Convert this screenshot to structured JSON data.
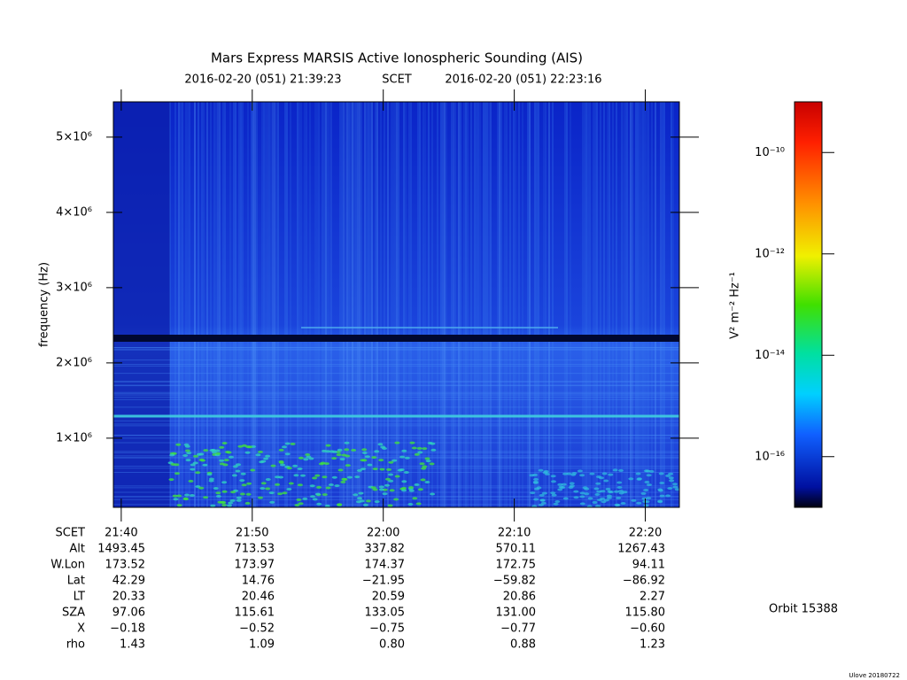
{
  "chart_data": {
    "type": "spectrogram",
    "title": "Mars Express MARSIS Active Ionospheric Sounding (AIS)",
    "subtitle": [
      "2016-02-20 (051) 21:39:23",
      "SCET",
      "2016-02-20 (051) 22:23:16"
    ],
    "y_label": "frequency (Hz)",
    "x_label": "SCET",
    "ylim": [
      80000,
      5470000
    ],
    "yticks": [
      {
        "value": 1000000,
        "label": "1×10⁶"
      },
      {
        "value": 2000000,
        "label": "2×10⁶"
      },
      {
        "value": 3000000,
        "label": "3×10⁶"
      },
      {
        "value": 4000000,
        "label": "4×10⁶"
      },
      {
        "value": 5000000,
        "label": "5×10⁶"
      }
    ],
    "xlim": [
      1299.4,
      1342.6
    ],
    "xticks": [
      {
        "value": 1300,
        "label": "21:40"
      },
      {
        "value": 1310,
        "label": "21:50"
      },
      {
        "value": 1320,
        "label": "22:00"
      },
      {
        "value": 1330,
        "label": "22:10"
      },
      {
        "value": 1340,
        "label": "22:20"
      }
    ],
    "colorbar": {
      "label": "V² m⁻² Hz⁻¹",
      "log": true,
      "clim": [
        1e-17,
        1e-09
      ],
      "ticks": [
        {
          "value": 1e-10,
          "label": "10⁻¹⁰"
        },
        {
          "value": 1e-12,
          "label": "10⁻¹²"
        },
        {
          "value": 1e-14,
          "label": "10⁻¹⁴"
        },
        {
          "value": 1e-16,
          "label": "10⁻¹⁶"
        }
      ]
    }
  },
  "ephemeris": {
    "rows": [
      {
        "name": "Alt",
        "values": [
          "1493.45",
          "713.53",
          "337.82",
          "570.11",
          "1267.43"
        ]
      },
      {
        "name": "W.Lon",
        "values": [
          "173.52",
          "173.97",
          "174.37",
          "172.75",
          "94.11"
        ]
      },
      {
        "name": "Lat",
        "values": [
          "42.29",
          "14.76",
          "−21.95",
          "−59.82",
          "−86.92"
        ]
      },
      {
        "name": "LT",
        "values": [
          "20.33",
          "20.46",
          "20.59",
          "20.86",
          "2.27"
        ]
      },
      {
        "name": "SZA",
        "values": [
          "97.06",
          "115.61",
          "133.05",
          "131.00",
          "115.80"
        ]
      },
      {
        "name": "X",
        "values": [
          "−0.18",
          "−0.52",
          "−0.75",
          "−0.77",
          "−0.60"
        ]
      },
      {
        "name": "rho",
        "values": [
          "1.43",
          "1.09",
          "0.80",
          "0.88",
          "1.23"
        ]
      }
    ]
  },
  "orbit": "Orbit 15388",
  "footer": "Ulove 20180722"
}
